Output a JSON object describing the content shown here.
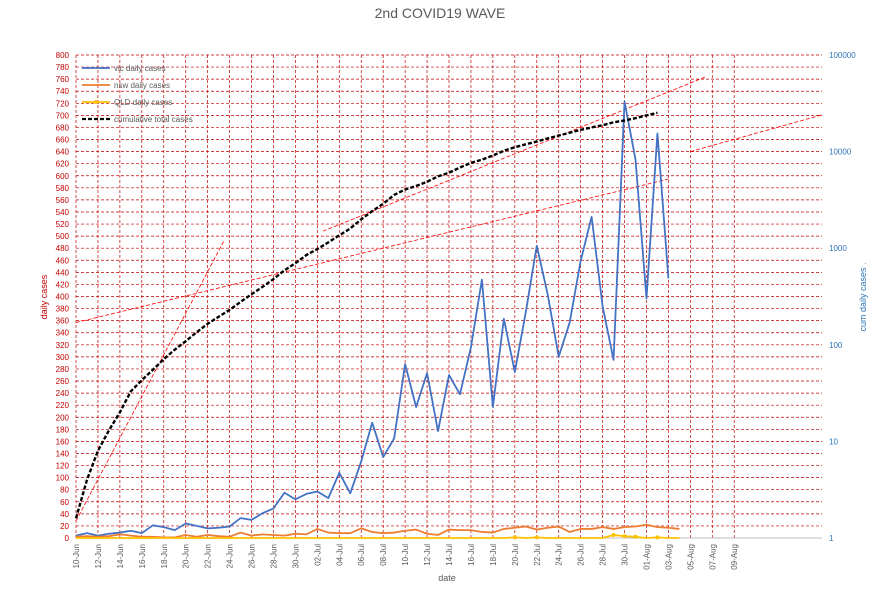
{
  "chart_data": {
    "type": "line",
    "title": "2nd COVID19 WAVE",
    "xlabel": "date",
    "ylabel": "daily cases",
    "y2label": "cum daily cases .",
    "ylim": [
      0,
      800
    ],
    "y2lim": [
      1,
      100000
    ],
    "y2scale": "log",
    "grid": true,
    "legend_position": "top-left",
    "x_tick_labels": [
      "10-Jun",
      "12-Jun",
      "14-Jun",
      "16-Jun",
      "18-Jun",
      "20-Jun",
      "22-Jun",
      "24-Jun",
      "26-Jun",
      "28-Jun",
      "30-Jun",
      "02-Jul",
      "04-Jul",
      "06-Jul",
      "08-Jul",
      "10-Jul",
      "12-Jul",
      "14-Jul",
      "16-Jul",
      "18-Jul",
      "20-Jul",
      "22-Jul",
      "24-Jul",
      "26-Jul",
      "28-Jul",
      "30-Jul",
      "01-Aug",
      "03-Aug",
      "05-Aug",
      "07-Aug",
      "09-Aug"
    ],
    "y_ticks": [
      0,
      20,
      40,
      60,
      80,
      100,
      120,
      140,
      160,
      180,
      200,
      220,
      240,
      260,
      280,
      300,
      320,
      340,
      360,
      380,
      400,
      420,
      440,
      460,
      480,
      500,
      520,
      540,
      560,
      580,
      600,
      620,
      640,
      660,
      680,
      700,
      720,
      740,
      760,
      780,
      800
    ],
    "y2_ticks": [
      1,
      10,
      100,
      1000,
      10000,
      100000
    ],
    "y2_tick_labels": [
      "1",
      "10",
      "100",
      "1000",
      "10000",
      "100000"
    ],
    "series": [
      {
        "name": "vic daily cases",
        "color": "#4472c4",
        "axis": "left",
        "values": [
          4,
          8,
          4,
          7,
          9,
          12,
          8,
          21,
          18,
          13,
          24,
          20,
          16,
          17,
          19,
          33,
          30,
          41,
          49,
          75,
          64,
          73,
          77,
          66,
          108,
          74,
          127,
          191,
          134,
          165,
          288,
          217,
          273,
          177,
          270,
          238,
          316,
          428,
          217,
          363,
          275,
          374,
          484,
          403,
          300,
          357,
          459,
          532,
          384,
          295,
          723,
          627,
          397,
          670,
          430
        ]
      },
      {
        "name": "nsw daily cases",
        "color": "#ed7d31",
        "axis": "left",
        "values": [
          2,
          3,
          2,
          3,
          6,
          4,
          2,
          2,
          1,
          1,
          5,
          2,
          5,
          3,
          2,
          9,
          4,
          6,
          5,
          4,
          7,
          6,
          15,
          9,
          8,
          8,
          16,
          10,
          8,
          9,
          12,
          14,
          7,
          5,
          14,
          13,
          13,
          10,
          9,
          15,
          17,
          19,
          14,
          17,
          19,
          10,
          15,
          15,
          18,
          15,
          18,
          19,
          22,
          18,
          17,
          15
        ]
      },
      {
        "name": "QLD daily cases",
        "color": "#ffc000",
        "axis": "left",
        "values": [
          0,
          0,
          0,
          0,
          0,
          0,
          0,
          0,
          0,
          0,
          0,
          0,
          0,
          0,
          0,
          0,
          0,
          0,
          0,
          0,
          0,
          0,
          0,
          0,
          0,
          0,
          0,
          0,
          0,
          0,
          0,
          0,
          0,
          0,
          0,
          0,
          0,
          0,
          0,
          0,
          1,
          0,
          1,
          0,
          0,
          0,
          0,
          0,
          0,
          5,
          3,
          2,
          0,
          1,
          0,
          0
        ]
      },
      {
        "name": "cumulative total cases",
        "color": "#000000",
        "axis": "right",
        "values": [
          1.6,
          4,
          8,
          13,
          20,
          33,
          43,
          55,
          71,
          89,
          109,
          135,
          165,
          195,
          230,
          278,
          334,
          398,
          479,
          590,
          700,
          850,
          980,
          1150,
          1360,
          1600,
          1990,
          2420,
          2880,
          3560,
          4050,
          4410,
          4870,
          5540,
          6040,
          6850,
          7650,
          8250,
          9100,
          10200,
          11100,
          11900,
          12700,
          13700,
          14650,
          15700,
          16800,
          17800,
          18750,
          20100,
          21000,
          22200,
          23700,
          25200
        ]
      }
    ],
    "trendlines": [
      {
        "color": "#ff0000",
        "style": "dashed",
        "x0": 0,
        "y0": 1.5,
        "x1": 13.5,
        "y1": 1200
      },
      {
        "color": "#ff0000",
        "style": "dashed",
        "x0": 0,
        "y0": 170,
        "x1": 54,
        "y1": 5200
      },
      {
        "color": "#ff0000",
        "style": "dashed",
        "x0": 22.5,
        "y0": 1500,
        "x1": 57.5,
        "y1": 60000
      },
      {
        "color": "#ff0000",
        "style": "dashed",
        "x0": 56,
        "y0": 10000,
        "x1": 68,
        "y1": 24000
      }
    ]
  }
}
